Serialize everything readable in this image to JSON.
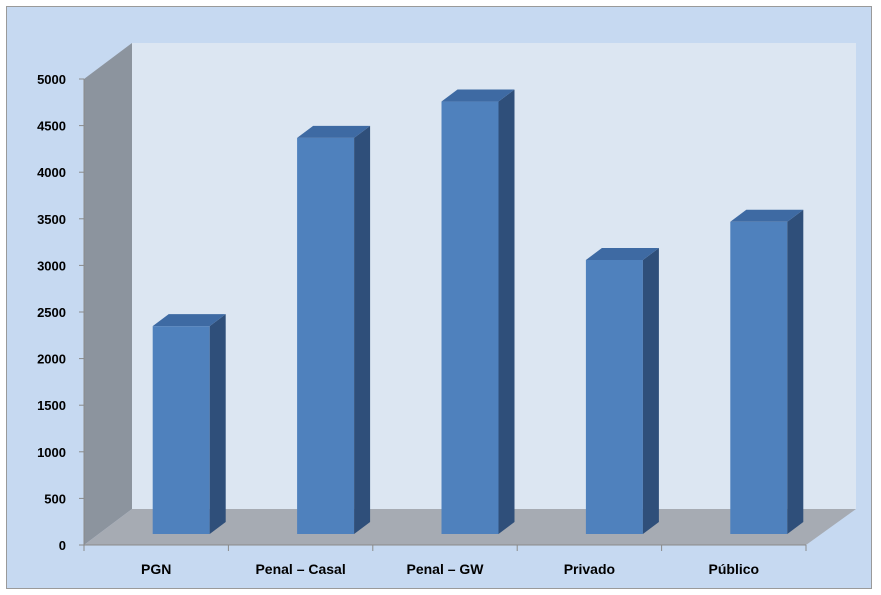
{
  "colors": {
    "outer_background": "#c6d9f1",
    "back_wall": "#dce6f2",
    "side_wall": "#8c949e",
    "floor": "#a6abb3",
    "bar_front": "#4f81bd",
    "bar_side": "#2f4f7a",
    "bar_top": "#3e6aa3",
    "axis_line": "#8a8a8a"
  },
  "chart_data": {
    "type": "bar",
    "title": "",
    "xlabel": "",
    "ylabel": "",
    "categories": [
      "PGN",
      "Penal – Casal",
      "Penal – GW",
      "Privado",
      "Público"
    ],
    "series": [
      {
        "values": [
          2230,
          4250,
          4640,
          2940,
          3350
        ]
      }
    ],
    "ylim": [
      0,
      5000
    ],
    "yticks": [
      0,
      500,
      1000,
      1500,
      2000,
      2500,
      3000,
      3500,
      4000,
      4500,
      5000
    ],
    "style": "3d-column",
    "grid": false,
    "legend": "none"
  }
}
